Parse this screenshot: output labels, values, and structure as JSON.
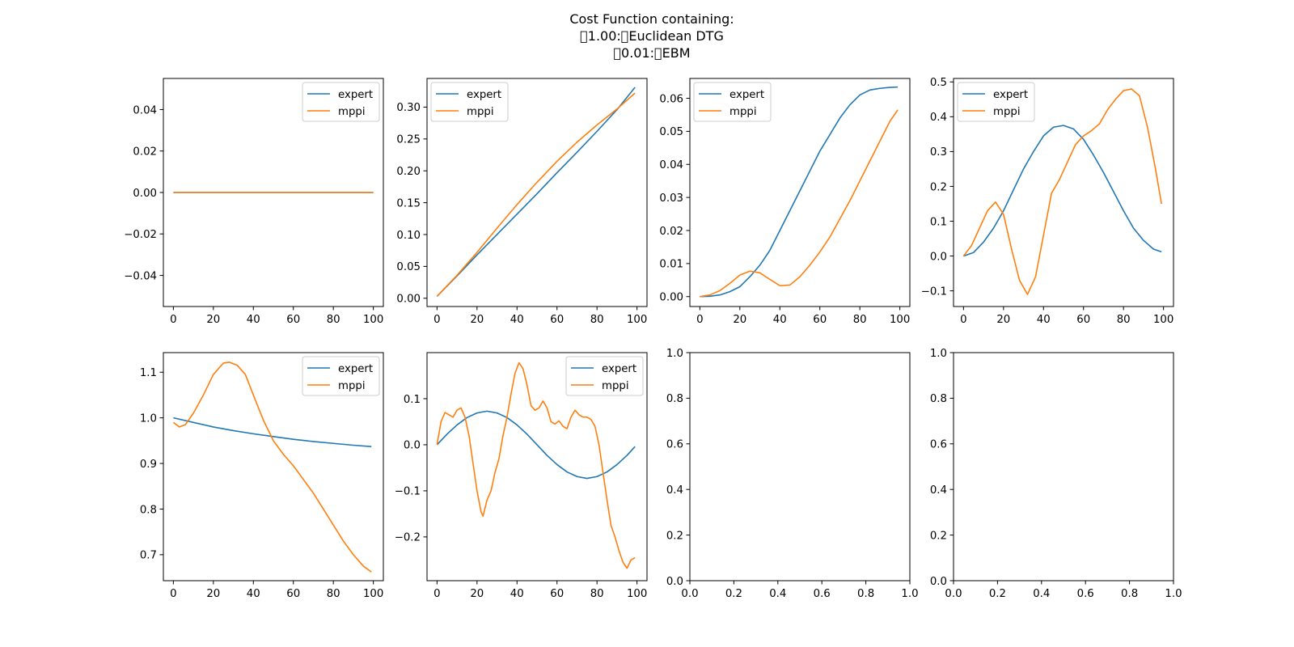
{
  "title": [
    "Cost Function containing:",
    "\u00001.00:\u0000Euclidean DTG",
    "\u00000.01:\u0000EBM"
  ],
  "colors": {
    "expert": "#1f77b4",
    "mppi": "#ff7f0e"
  },
  "chart_data": [
    {
      "type": "line",
      "xlim": [
        -5,
        105
      ],
      "ylim": [
        -0.055,
        0.055
      ],
      "xticks": [
        0,
        20,
        40,
        60,
        80,
        100
      ],
      "xtick_labels": [
        "0",
        "20",
        "40",
        "60",
        "80",
        "100"
      ],
      "yticks": [
        -0.04,
        -0.02,
        0.0,
        0.02,
        0.04
      ],
      "ytick_labels": [
        "−0.04",
        "−0.02",
        "0.00",
        "0.02",
        "0.04"
      ],
      "legend": "top-right",
      "series": [
        {
          "name": "expert",
          "x": [
            0,
            100
          ],
          "y": [
            0,
            0
          ]
        },
        {
          "name": "mppi",
          "x": [
            0,
            100
          ],
          "y": [
            0,
            0
          ]
        }
      ]
    },
    {
      "type": "line",
      "xlim": [
        -5,
        105
      ],
      "ylim": [
        -0.013,
        0.345
      ],
      "xticks": [
        0,
        20,
        40,
        60,
        80,
        100
      ],
      "xtick_labels": [
        "0",
        "20",
        "40",
        "60",
        "80",
        "100"
      ],
      "yticks": [
        0,
        0.05,
        0.1,
        0.15,
        0.2,
        0.25,
        0.3
      ],
      "ytick_labels": [
        "0.00",
        "0.05",
        "0.10",
        "0.15",
        "0.20",
        "0.25",
        "0.30"
      ],
      "legend": "top-left",
      "series": [
        {
          "name": "expert",
          "x": [
            0,
            10,
            20,
            30,
            40,
            50,
            60,
            70,
            80,
            90,
            99
          ],
          "y": [
            0.003,
            0.035,
            0.068,
            0.1,
            0.132,
            0.164,
            0.197,
            0.229,
            0.262,
            0.296,
            0.331
          ]
        },
        {
          "name": "mppi",
          "x": [
            0,
            10,
            20,
            30,
            40,
            50,
            60,
            70,
            80,
            90,
            99
          ],
          "y": [
            0.003,
            0.036,
            0.072,
            0.11,
            0.147,
            0.182,
            0.215,
            0.245,
            0.272,
            0.297,
            0.322
          ]
        }
      ]
    },
    {
      "type": "line",
      "xlim": [
        -5,
        105
      ],
      "ylim": [
        -0.003,
        0.066
      ],
      "xticks": [
        0,
        20,
        40,
        60,
        80,
        100
      ],
      "xtick_labels": [
        "0",
        "20",
        "40",
        "60",
        "80",
        "100"
      ],
      "yticks": [
        0,
        0.01,
        0.02,
        0.03,
        0.04,
        0.05,
        0.06
      ],
      "ytick_labels": [
        "0.00",
        "0.01",
        "0.02",
        "0.03",
        "0.04",
        "0.05",
        "0.06"
      ],
      "legend": "top-left",
      "series": [
        {
          "name": "expert",
          "x": [
            0,
            5,
            10,
            15,
            20,
            25,
            30,
            35,
            40,
            45,
            50,
            55,
            60,
            65,
            70,
            75,
            80,
            85,
            90,
            95,
            99
          ],
          "y": [
            0,
            0.0001,
            0.0005,
            0.0015,
            0.003,
            0.006,
            0.0095,
            0.014,
            0.02,
            0.026,
            0.032,
            0.038,
            0.044,
            0.049,
            0.054,
            0.058,
            0.061,
            0.0625,
            0.063,
            0.0633,
            0.0634
          ]
        },
        {
          "name": "mppi",
          "x": [
            0,
            5,
            10,
            15,
            20,
            25,
            30,
            35,
            40,
            45,
            50,
            55,
            60,
            65,
            70,
            75,
            80,
            85,
            90,
            95,
            99
          ],
          "y": [
            0,
            0.0005,
            0.0018,
            0.004,
            0.0065,
            0.0077,
            0.0072,
            0.0052,
            0.0033,
            0.0035,
            0.006,
            0.0095,
            0.0135,
            0.018,
            0.0235,
            0.029,
            0.035,
            0.041,
            0.047,
            0.053,
            0.0565
          ]
        }
      ]
    },
    {
      "type": "line",
      "xlim": [
        -5,
        105
      ],
      "ylim": [
        -0.145,
        0.51
      ],
      "xticks": [
        0,
        20,
        40,
        60,
        80,
        100
      ],
      "xtick_labels": [
        "0",
        "20",
        "40",
        "60",
        "80",
        "100"
      ],
      "yticks": [
        -0.1,
        0,
        0.1,
        0.2,
        0.3,
        0.4,
        0.5
      ],
      "ytick_labels": [
        "−0.1",
        "0.0",
        "0.1",
        "0.2",
        "0.3",
        "0.4",
        "0.5"
      ],
      "legend": "top-left",
      "series": [
        {
          "name": "expert",
          "x": [
            0,
            5,
            10,
            15,
            20,
            25,
            30,
            35,
            40,
            45,
            50,
            55,
            60,
            65,
            70,
            75,
            80,
            85,
            90,
            95,
            99
          ],
          "y": [
            0,
            0.01,
            0.04,
            0.08,
            0.13,
            0.19,
            0.25,
            0.3,
            0.345,
            0.37,
            0.375,
            0.365,
            0.335,
            0.29,
            0.24,
            0.185,
            0.13,
            0.08,
            0.045,
            0.02,
            0.012
          ]
        },
        {
          "name": "mppi",
          "x": [
            0,
            4,
            8,
            12,
            16,
            20,
            24,
            28,
            32,
            36,
            40,
            44,
            48,
            52,
            56,
            60,
            64,
            68,
            72,
            76,
            80,
            84,
            88,
            92,
            96,
            99
          ],
          "y": [
            0,
            0.03,
            0.08,
            0.13,
            0.155,
            0.12,
            0.02,
            -0.07,
            -0.11,
            -0.06,
            0.06,
            0.18,
            0.22,
            0.27,
            0.32,
            0.345,
            0.36,
            0.38,
            0.42,
            0.45,
            0.475,
            0.48,
            0.46,
            0.37,
            0.25,
            0.15
          ]
        }
      ]
    },
    {
      "type": "line",
      "xlim": [
        -5,
        105
      ],
      "ylim": [
        0.643,
        1.143
      ],
      "xticks": [
        0,
        20,
        40,
        60,
        80,
        100
      ],
      "xtick_labels": [
        "0",
        "20",
        "40",
        "60",
        "80",
        "100"
      ],
      "yticks": [
        0.7,
        0.8,
        0.9,
        1.0,
        1.1
      ],
      "ytick_labels": [
        "0.7",
        "0.8",
        "0.9",
        "1.0",
        "1.1"
      ],
      "legend": "top-right",
      "series": [
        {
          "name": "expert",
          "x": [
            0,
            10,
            20,
            30,
            40,
            50,
            60,
            70,
            80,
            90,
            99
          ],
          "y": [
            1.0,
            0.99,
            0.98,
            0.972,
            0.965,
            0.959,
            0.953,
            0.948,
            0.944,
            0.94,
            0.937
          ]
        },
        {
          "name": "mppi",
          "x": [
            0,
            3,
            6,
            10,
            15,
            20,
            25,
            28,
            32,
            36,
            40,
            45,
            50,
            55,
            60,
            65,
            70,
            75,
            80,
            85,
            90,
            95,
            99
          ],
          "y": [
            0.99,
            0.98,
            0.985,
            1.01,
            1.05,
            1.095,
            1.12,
            1.122,
            1.115,
            1.095,
            1.05,
            0.995,
            0.95,
            0.92,
            0.895,
            0.865,
            0.835,
            0.8,
            0.765,
            0.73,
            0.7,
            0.675,
            0.662
          ]
        }
      ]
    },
    {
      "type": "line",
      "xlim": [
        -5,
        105
      ],
      "ylim": [
        -0.295,
        0.2
      ],
      "xticks": [
        0,
        20,
        40,
        60,
        80,
        100
      ],
      "xtick_labels": [
        "0",
        "20",
        "40",
        "60",
        "80",
        "100"
      ],
      "yticks": [
        -0.2,
        -0.1,
        0,
        0.1
      ],
      "ytick_labels": [
        "−0.2",
        "−0.1",
        "0.0",
        "0.1"
      ],
      "legend": "top-right",
      "series": [
        {
          "name": "expert",
          "x": [
            0,
            5,
            10,
            15,
            20,
            25,
            30,
            35,
            40,
            45,
            50,
            55,
            60,
            65,
            70,
            75,
            80,
            85,
            90,
            95,
            99
          ],
          "y": [
            0,
            0.023,
            0.043,
            0.059,
            0.069,
            0.073,
            0.069,
            0.059,
            0.043,
            0.023,
            0,
            -0.023,
            -0.043,
            -0.059,
            -0.069,
            -0.073,
            -0.069,
            -0.059,
            -0.043,
            -0.023,
            -0.004
          ]
        },
        {
          "name": "mppi",
          "x": [
            0,
            2,
            4,
            6,
            8,
            10,
            12,
            14,
            16,
            18,
            20,
            22,
            23,
            25,
            27,
            29,
            31,
            33,
            35,
            37,
            39,
            41,
            43,
            45,
            47,
            49,
            51,
            53,
            55,
            57,
            59,
            61,
            63,
            65,
            67,
            69,
            71,
            73,
            75,
            77,
            79,
            81,
            83,
            85,
            87,
            89,
            91,
            93,
            95,
            97,
            99
          ],
          "y": [
            0,
            0.05,
            0.07,
            0.065,
            0.06,
            0.075,
            0.08,
            0.06,
            0.02,
            -0.04,
            -0.1,
            -0.145,
            -0.155,
            -0.12,
            -0.1,
            -0.06,
            -0.03,
            0.02,
            0.06,
            0.11,
            0.155,
            0.178,
            0.165,
            0.13,
            0.085,
            0.075,
            0.08,
            0.095,
            0.08,
            0.05,
            0.045,
            0.052,
            0.04,
            0.035,
            0.06,
            0.075,
            0.065,
            0.06,
            0.06,
            0.055,
            0.04,
            0.0,
            -0.06,
            -0.12,
            -0.175,
            -0.2,
            -0.23,
            -0.255,
            -0.268,
            -0.25,
            -0.245
          ]
        }
      ]
    },
    {
      "type": "line",
      "xlim": [
        0,
        1
      ],
      "ylim": [
        0,
        1
      ],
      "xticks": [
        0,
        0.2,
        0.4,
        0.6,
        0.8,
        1.0
      ],
      "xtick_labels": [
        "0.0",
        "0.2",
        "0.4",
        "0.6",
        "0.8",
        "1.0"
      ],
      "yticks": [
        0,
        0.2,
        0.4,
        0.6,
        0.8,
        1.0
      ],
      "ytick_labels": [
        "0.0",
        "0.2",
        "0.4",
        "0.6",
        "0.8",
        "1.0"
      ],
      "legend": "",
      "series": []
    },
    {
      "type": "line",
      "xlim": [
        0,
        1
      ],
      "ylim": [
        0,
        1
      ],
      "xticks": [
        0,
        0.2,
        0.4,
        0.6,
        0.8,
        1.0
      ],
      "xtick_labels": [
        "0.0",
        "0.2",
        "0.4",
        "0.6",
        "0.8",
        "1.0"
      ],
      "yticks": [
        0,
        0.2,
        0.4,
        0.6,
        0.8,
        1.0
      ],
      "ytick_labels": [
        "0.0",
        "0.2",
        "0.4",
        "0.6",
        "0.8",
        "1.0"
      ],
      "legend": "",
      "series": []
    }
  ]
}
